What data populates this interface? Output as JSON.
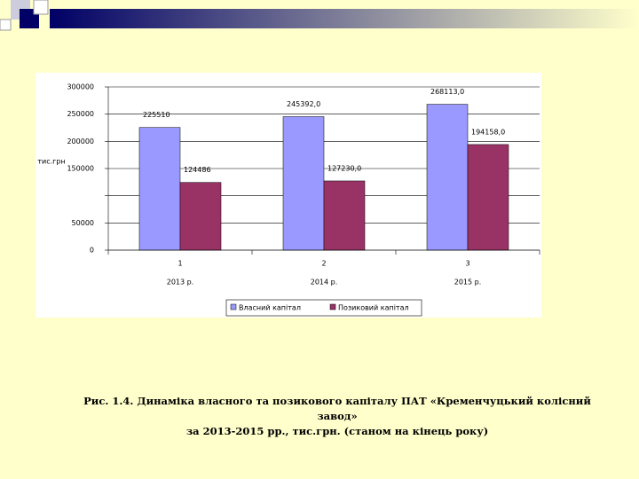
{
  "chart_data": {
    "type": "bar",
    "y_label": "тис.грн",
    "categories": [
      "1",
      "2",
      "3"
    ],
    "category_sublabels": [
      "2013 р.",
      "2014 р.",
      "2015 р."
    ],
    "series": [
      {
        "name": "Власний капітал",
        "color": "#9999ff",
        "values": [
          225510,
          245392.0,
          268113.0
        ],
        "value_labels": [
          "225510",
          "245392,0",
          "268113,0"
        ]
      },
      {
        "name": "Позиковий капітал",
        "color": "#993366",
        "values": [
          124486,
          127230.0,
          194158.0
        ],
        "value_labels": [
          "124486",
          "127230,0",
          "194158,0"
        ]
      }
    ],
    "ylim": [
      0,
      300000
    ],
    "yticks": [
      0,
      50000,
      {
        "value": 100000,
        "label": null
      },
      150000,
      200000,
      250000,
      300000
    ],
    "grid": true,
    "legend": "bottom"
  },
  "caption": [
    "Рис. 1.4. Динаміка власного та позикового капіталу ПАТ «Кременчуцький колісний",
    "завод»",
    "за 2013-2015 рр., тис.грн. (станом на кінець року)"
  ]
}
